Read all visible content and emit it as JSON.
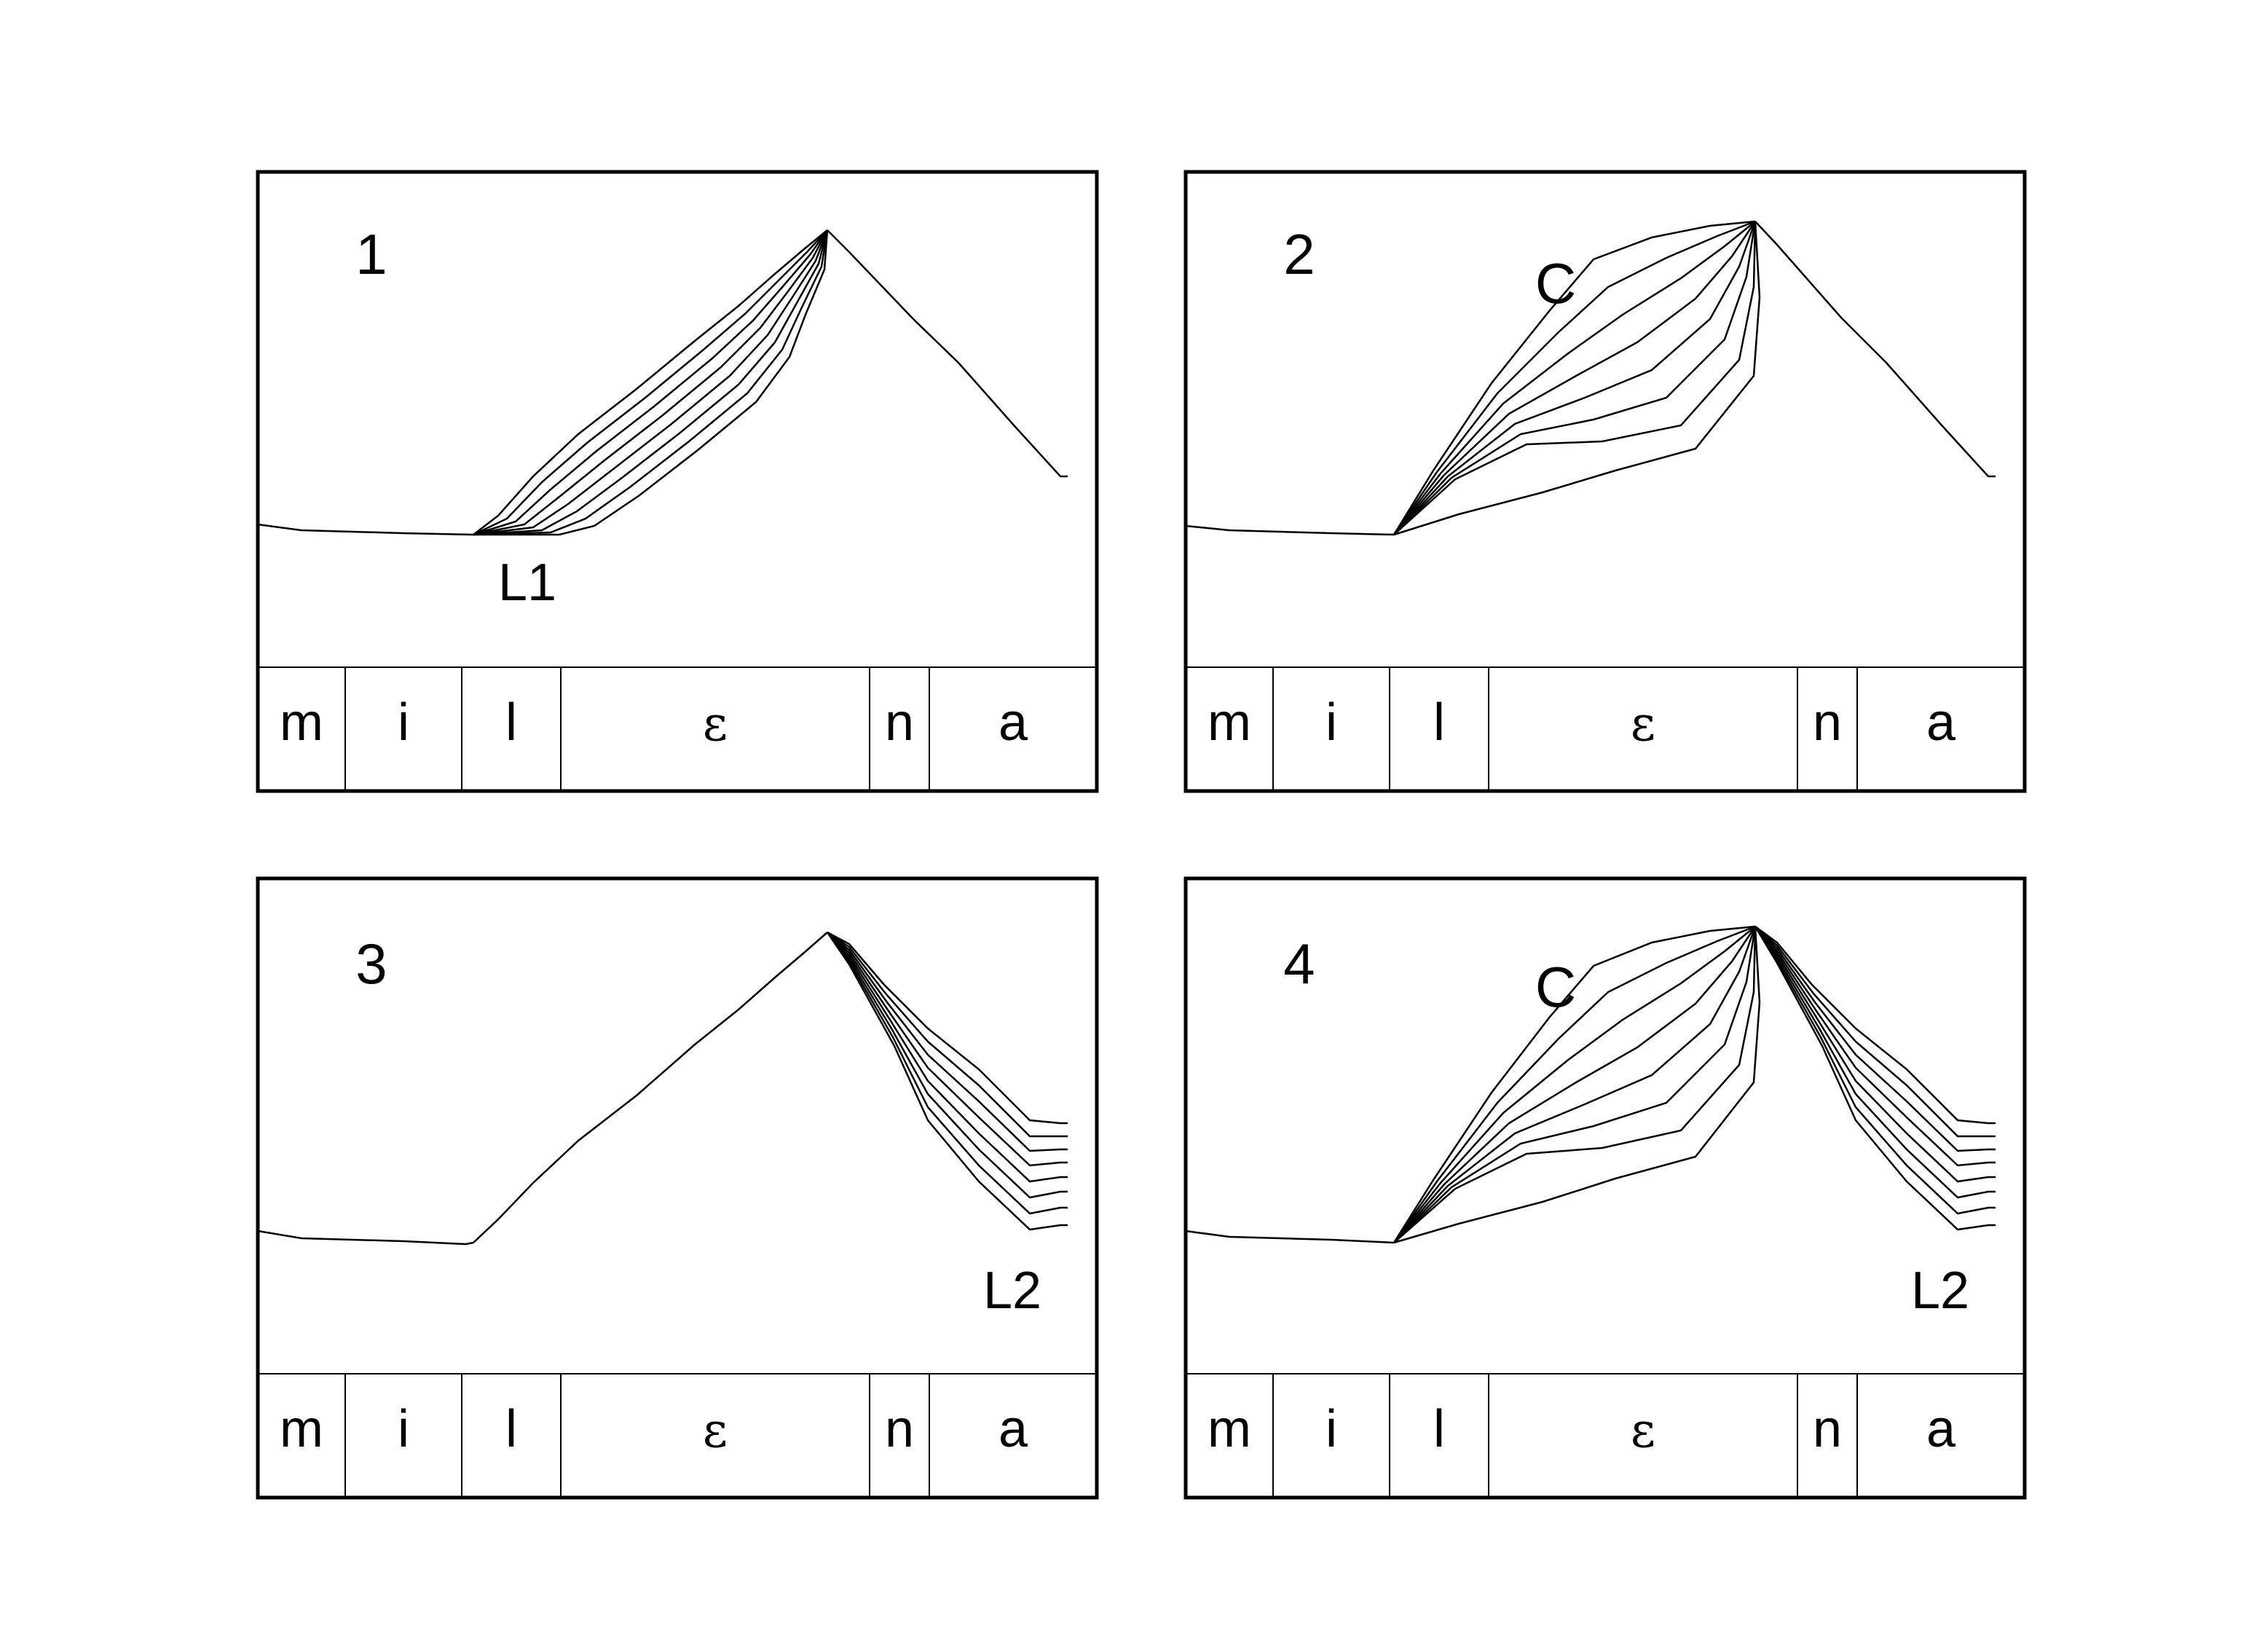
{
  "segments": [
    "m",
    "i",
    "l",
    "ε",
    "n",
    "a"
  ],
  "panels": [
    {
      "number": "1",
      "labels": [
        {
          "text": "L1"
        }
      ],
      "families": [
        {
          "name": "L1-fan",
          "count": 8
        }
      ]
    },
    {
      "number": "2",
      "labels": [
        {
          "text": "C"
        }
      ],
      "families": [
        {
          "name": "C-fan",
          "count": 8
        }
      ]
    },
    {
      "number": "3",
      "labels": [
        {
          "text": "L2"
        }
      ],
      "families": [
        {
          "name": "L2-fan",
          "count": 8
        }
      ]
    },
    {
      "number": "4",
      "labels": [
        {
          "text": "C"
        },
        {
          "text": "L2"
        }
      ],
      "families": [
        {
          "name": "C-fan",
          "count": 8
        },
        {
          "name": "L2-fan",
          "count": 8
        }
      ]
    }
  ]
}
